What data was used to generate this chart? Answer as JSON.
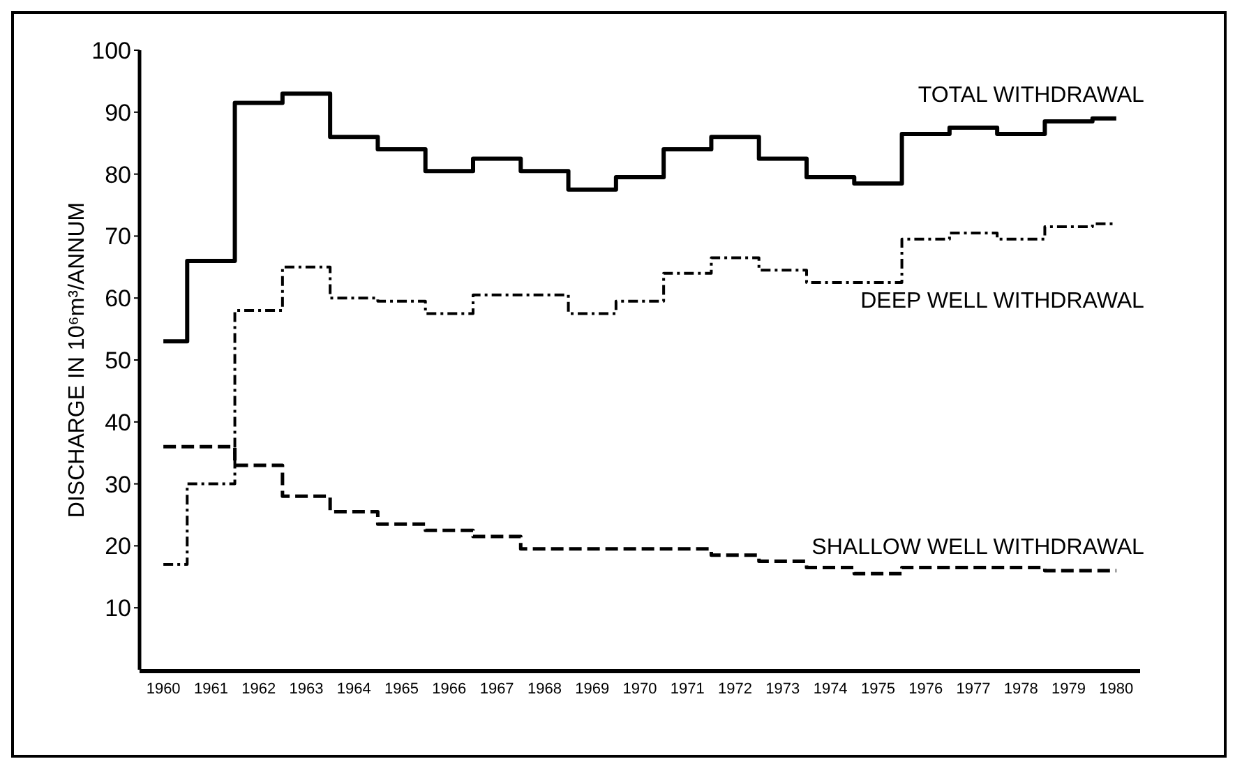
{
  "chart_data": {
    "type": "step",
    "ylabel": "DISCHARGE IN 10⁶m³/ANNUM",
    "categories": [
      "1960",
      "1961",
      "1962",
      "1963",
      "1964",
      "1965",
      "1966",
      "1967",
      "1968",
      "1969",
      "1970",
      "1971",
      "1972",
      "1973",
      "1974",
      "1975",
      "1976",
      "1977",
      "1978",
      "1979",
      "1980"
    ],
    "series": [
      {
        "name": "TOTAL WITHDRAWAL",
        "color": "#000000",
        "line_style": "solid",
        "values": [
          53,
          66,
          91.5,
          93,
          86,
          84,
          80.5,
          82.5,
          80.5,
          77.5,
          79.5,
          84,
          86,
          82.5,
          79.5,
          78.5,
          86.5,
          87.5,
          86.5,
          88.5,
          89
        ]
      },
      {
        "name": "DEEP WELL WITHDRAWAL",
        "color": "#000000",
        "line_style": "dotted",
        "values": [
          17,
          30,
          58,
          65,
          60,
          59.5,
          57.5,
          60.5,
          60.5,
          57.5,
          59.5,
          64,
          66.5,
          64.5,
          62.5,
          62.5,
          69.5,
          70.5,
          69.5,
          71.5,
          72
        ]
      },
      {
        "name": "SHALLOW WELL WITHDRAWAL",
        "color": "#000000",
        "line_style": "dashed",
        "values": [
          36,
          36,
          33,
          28,
          25.5,
          23.5,
          22.5,
          21.5,
          19.5,
          19.5,
          19.5,
          19.5,
          18.5,
          17.5,
          16.5,
          15.5,
          16.5,
          16.5,
          16.5,
          16,
          16
        ]
      }
    ],
    "ylim": [
      0,
      100
    ],
    "yticks": [
      10,
      20,
      30,
      40,
      50,
      60,
      70,
      80,
      90,
      100
    ]
  }
}
